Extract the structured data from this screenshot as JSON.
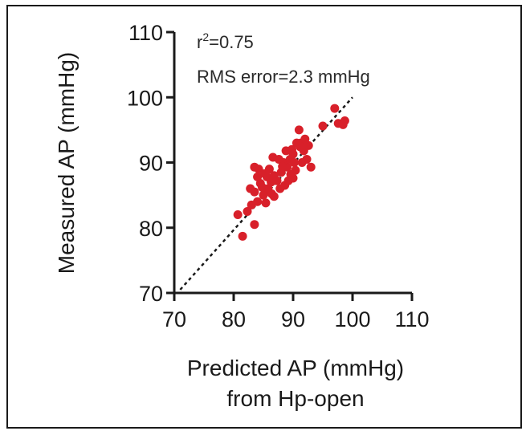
{
  "chart_data": {
    "type": "scatter",
    "title": "",
    "xlabel_line1": "Predicted AP (mmHg)",
    "xlabel_line2": "from Hp-open",
    "ylabel": "Measured AP (mmHg)",
    "xlim": [
      70,
      110
    ],
    "ylim": [
      70,
      110
    ],
    "xticks": [
      "70",
      "80",
      "90",
      "100",
      "110"
    ],
    "yticks": [
      "70",
      "80",
      "90",
      "100",
      "110"
    ],
    "annotation_r2_base": "r",
    "annotation_r2_sup": "2",
    "annotation_r2_rest": "=0.75",
    "annotation_rms": "RMS error=2.3 mmHg",
    "reference_line": {
      "style": "dashed",
      "from": [
        71,
        70.5
      ],
      "to": [
        100,
        100
      ]
    },
    "grid": false,
    "point_color": "#d8202a",
    "points": [
      [
        81.5,
        78.7
      ],
      [
        83.5,
        80.5
      ],
      [
        80.7,
        82.0
      ],
      [
        82.3,
        82.5
      ],
      [
        83.0,
        83.5
      ],
      [
        84.0,
        84.0
      ],
      [
        85.0,
        85.0
      ],
      [
        83.5,
        85.5
      ],
      [
        82.8,
        86.0
      ],
      [
        84.5,
        86.8
      ],
      [
        85.8,
        86.0
      ],
      [
        86.3,
        87.0
      ],
      [
        86.8,
        88.0
      ],
      [
        87.3,
        87.2
      ],
      [
        85.6,
        87.8
      ],
      [
        84.0,
        87.8
      ],
      [
        86.0,
        89.0
      ],
      [
        88.0,
        88.5
      ],
      [
        88.6,
        86.5
      ],
      [
        89.0,
        89.3
      ],
      [
        88.4,
        90.0
      ],
      [
        89.5,
        90.5
      ],
      [
        90.0,
        91.3
      ],
      [
        89.8,
        92.0
      ],
      [
        90.6,
        93.0
      ],
      [
        91.3,
        93.0
      ],
      [
        91.0,
        95.0
      ],
      [
        91.8,
        91.8
      ],
      [
        92.3,
        90.5
      ],
      [
        91.5,
        90.0
      ],
      [
        90.4,
        88.8
      ],
      [
        89.2,
        87.2
      ],
      [
        87.8,
        86.0
      ],
      [
        86.4,
        85.2
      ],
      [
        84.2,
        89.0
      ],
      [
        83.5,
        89.3
      ],
      [
        85.2,
        88.3
      ],
      [
        90.0,
        87.6
      ],
      [
        92.6,
        92.6
      ],
      [
        93.0,
        89.3
      ],
      [
        95.0,
        95.6
      ],
      [
        97.0,
        98.3
      ],
      [
        97.6,
        96.0
      ],
      [
        98.4,
        95.8
      ],
      [
        98.7,
        96.4
      ],
      [
        87.6,
        90.5
      ],
      [
        88.8,
        91.8
      ],
      [
        90.2,
        90.0
      ],
      [
        86.8,
        84.8
      ],
      [
        85.4,
        83.8
      ],
      [
        89.6,
        88.2
      ],
      [
        91.2,
        92.4
      ],
      [
        88.2,
        89.4
      ],
      [
        84.8,
        86.2
      ],
      [
        92.0,
        93.6
      ],
      [
        86.6,
        90.8
      ]
    ]
  }
}
